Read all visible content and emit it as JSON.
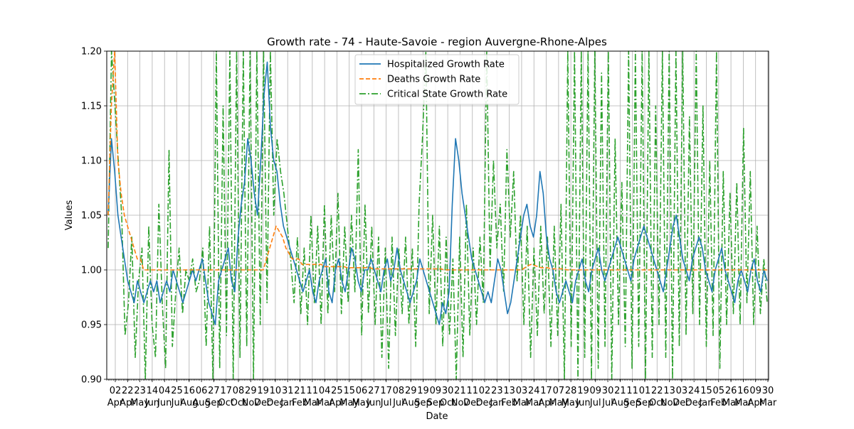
{
  "chart_data": {
    "type": "line",
    "title": "Growth rate - 74 - Haute-Savoie - region Auvergne-Rhone-Alpes",
    "xlabel": "Date",
    "ylabel": "Values",
    "ylim": [
      0.9,
      1.2
    ],
    "yticks": [
      "0.90",
      "0.95",
      "1.00",
      "1.05",
      "1.10",
      "1.15",
      "1.20"
    ],
    "grid": true,
    "legend": {
      "placement": "top-center"
    },
    "x_tick_labels": {
      "day": [
        "02",
        "22",
        "23",
        "14",
        "04",
        "25",
        "16",
        "06",
        "27",
        "17",
        "08",
        "29",
        "19",
        "10",
        "31",
        "21",
        "11",
        "04",
        "25",
        "15",
        "06",
        "27",
        "17",
        "08",
        "29",
        "19",
        "09",
        "30",
        "21",
        "11",
        "02",
        "23",
        "13",
        "03",
        "24",
        "17",
        "07",
        "28",
        "19",
        "09",
        "30",
        "21",
        "11",
        "01",
        "22",
        "13",
        "03",
        "24",
        "15",
        "05",
        "26",
        "16",
        "09",
        "30"
      ],
      "month": [
        "Apr",
        "Apr",
        "May",
        "Jun",
        "Jun",
        "Jul",
        "Aug",
        "Aug",
        "Sep",
        "Oct",
        "Oct",
        "Nov",
        "Dec",
        "Dec",
        "Jan",
        "Feb",
        "Mar",
        "Mar",
        "Apr",
        "May",
        "May",
        "Jun",
        "Jul",
        "Jul",
        "Aug",
        "Sep",
        "Sep",
        "Oct",
        "Nov",
        "Dec",
        "Dec",
        "Jan",
        "Feb",
        "Mar",
        "Mar",
        "Apr",
        "May",
        "May",
        "Jun",
        "Jul",
        "Jul",
        "Aug",
        "Sep",
        "Sep",
        "Oct",
        "Nov",
        "Dec",
        "Dec",
        "Jan",
        "Feb",
        "Mar",
        "Mar",
        "Apr",
        "Mar"
      ]
    },
    "series": [
      {
        "name": "Hospitalized Growth Rate",
        "color": "#1f77b4",
        "style": "solid",
        "values": [
          1.05,
          1.12,
          1.09,
          1.05,
          1.03,
          1.01,
          0.99,
          0.98,
          0.97,
          0.99,
          0.98,
          0.97,
          0.98,
          0.99,
          0.98,
          0.99,
          0.97,
          0.98,
          0.99,
          0.98,
          1.0,
          0.99,
          0.98,
          0.97,
          0.98,
          0.99,
          1.0,
          0.99,
          1.0,
          1.01,
          0.99,
          0.97,
          0.96,
          0.95,
          0.99,
          1.0,
          1.01,
          1.02,
          0.99,
          0.98,
          1.03,
          1.06,
          1.08,
          1.12,
          1.1,
          1.07,
          1.05,
          1.1,
          1.16,
          1.19,
          1.13,
          1.1,
          1.09,
          1.06,
          1.04,
          1.03,
          1.02,
          1.01,
          1.0,
          0.99,
          0.98,
          0.99,
          1.0,
          0.98,
          0.97,
          0.99,
          1.0,
          1.01,
          0.98,
          0.97,
          1.0,
          1.01,
          0.99,
          0.98,
          1.0,
          1.02,
          1.01,
          0.99,
          0.98,
          1.0,
          1.0,
          1.01,
          1.0,
          0.99,
          0.98,
          1.0,
          1.01,
          0.99,
          1.0,
          1.02,
          1.0,
          0.99,
          0.98,
          0.97,
          0.98,
          0.99,
          1.01,
          1.0,
          0.99,
          0.98,
          0.97,
          0.96,
          0.95,
          0.97,
          0.96,
          0.98,
          1.06,
          1.12,
          1.1,
          1.07,
          1.05,
          1.03,
          1.01,
          1.0,
          0.99,
          0.98,
          0.97,
          0.98,
          0.97,
          0.99,
          1.01,
          1.0,
          0.98,
          0.96,
          0.97,
          0.99,
          1.01,
          1.03,
          1.05,
          1.06,
          1.04,
          1.03,
          1.05,
          1.09,
          1.07,
          1.03,
          1.01,
          1.0,
          0.98,
          0.97,
          0.98,
          0.99,
          0.98,
          0.97,
          0.99,
          1.0,
          1.01,
          0.99,
          0.98,
          1.0,
          1.01,
          1.02,
          1.0,
          0.99,
          1.0,
          1.01,
          1.02,
          1.03,
          1.02,
          1.01,
          1.0,
          0.99,
          1.01,
          1.02,
          1.03,
          1.04,
          1.03,
          1.02,
          1.01,
          1.0,
          0.99,
          0.98,
          1.0,
          1.02,
          1.04,
          1.05,
          1.03,
          1.01,
          1.0,
          0.99,
          1.01,
          1.02,
          1.03,
          1.02,
          1.0,
          0.99,
          0.98,
          1.0,
          1.01,
          1.02,
          1.0,
          0.99,
          0.98,
          0.97,
          0.99,
          1.0,
          0.99,
          0.98,
          1.0,
          1.01,
          0.99,
          0.98,
          1.0,
          0.99
        ]
      },
      {
        "name": "Deaths Growth Rate",
        "color": "#ff7f0e",
        "style": "dashed",
        "values": [
          1.05,
          1.15,
          1.2,
          1.1,
          1.07,
          1.05,
          1.04,
          1.03,
          1.02,
          1.01,
          1.01,
          1.0,
          1.0,
          1.0,
          1.0,
          1.0,
          1.0,
          1.0,
          1.0,
          1.0,
          1.0,
          1.0,
          1.0,
          1.0,
          1.0,
          1.0,
          1.0,
          1.0,
          1.0,
          1.0,
          1.0,
          1.0,
          1.0,
          1.0,
          1.0,
          1.0,
          1.0,
          1.0,
          1.0,
          1.0,
          1.0,
          1.0,
          1.0,
          1.0,
          1.0,
          1.0,
          1.0,
          1.0,
          1.0,
          1.01,
          1.02,
          1.03,
          1.04,
          1.035,
          1.03,
          1.02,
          1.015,
          1.01,
          1.01,
          1.01,
          1.005,
          1.005,
          1.005,
          1.005,
          1.005,
          1.005,
          1.005,
          1.003,
          1.003,
          1.003,
          1.003,
          1.003,
          1.003,
          1.003,
          1.002,
          1.002,
          1.002,
          1.002,
          1.002,
          1.002,
          1.002,
          1.002,
          1.001,
          1.001,
          1.001,
          1.001,
          1.001,
          1.001,
          1.001,
          1.001,
          1.001,
          1.001,
          1.001,
          1.001,
          1.001,
          1.001,
          1.001,
          1.001,
          1.001,
          1.001,
          1.001,
          1.001,
          1.001,
          1.001,
          1.0,
          1.0,
          1.0,
          1.0,
          1.0,
          1.0,
          1.0,
          1.0,
          1.0,
          1.0,
          1.0,
          1.0,
          1.0,
          1.0,
          1.0,
          1.0,
          1.0,
          1.0,
          1.0,
          1.0,
          1.0,
          1.0,
          1.0,
          1.0,
          1.0,
          1.002,
          1.004,
          1.005,
          1.004,
          1.003,
          1.002,
          1.002,
          1.002,
          1.001,
          1.001,
          1.001,
          1.001,
          1.001,
          1.0,
          1.0,
          1.0,
          1.0,
          1.0,
          1.0,
          1.0,
          1.0,
          1.0,
          1.0,
          1.0,
          1.0,
          1.0,
          1.0,
          1.0,
          1.0,
          1.0,
          1.0,
          1.0,
          1.0,
          1.0,
          1.0,
          1.0,
          1.0,
          1.0,
          1.0,
          1.0,
          1.0,
          1.0,
          1.0,
          1.0,
          1.0,
          1.0,
          1.0,
          1.0,
          1.0,
          1.0,
          1.0,
          1.0,
          1.0,
          1.0,
          1.0,
          1.0,
          1.0,
          1.0,
          1.0,
          1.0,
          1.0,
          1.0,
          1.0,
          1.0,
          1.0,
          1.0,
          1.0,
          1.0,
          1.0,
          1.0,
          1.0,
          1.0,
          1.0,
          1.0,
          1.0,
          1.0
        ]
      },
      {
        "name": "Critical State Growth Rate",
        "color": "#2ca02c",
        "style": "dashdot",
        "values": [
          1.02,
          1.2,
          1.15,
          1.1,
          1.05,
          0.94,
          0.97,
          1.03,
          0.92,
          0.99,
          1.02,
          0.9,
          1.04,
          0.95,
          0.92,
          1.06,
          0.97,
          0.91,
          1.11,
          0.93,
          0.98,
          1.02,
          0.96,
          1.0,
          0.99,
          1.01,
          0.98,
          0.99,
          1.02,
          0.93,
          1.04,
          0.9,
          1.2,
          0.91,
          1.15,
          0.94,
          1.2,
          0.9,
          1.2,
          0.92,
          1.2,
          0.93,
          1.2,
          0.9,
          1.2,
          0.95,
          1.2,
          0.97,
          1.2,
          1.05,
          1.12,
          1.09,
          1.07,
          1.04,
          1.01,
          0.97,
          1.03,
          0.96,
          1.02,
          0.95,
          1.05,
          0.97,
          1.04,
          0.95,
          1.06,
          0.96,
          1.05,
          0.98,
          1.07,
          0.96,
          1.04,
          0.97,
          1.05,
          0.98,
          1.11,
          0.94,
          1.06,
          0.96,
          1.04,
          0.95,
          1.03,
          0.92,
          1.02,
          0.91,
          1.03,
          0.94,
          1.02,
          0.96,
          1.03,
          0.95,
          1.02,
          0.93,
          1.06,
          1.12,
          1.2,
          0.96,
          1.05,
          0.95,
          1.04,
          0.93,
          1.03,
          0.94,
          1.01,
          0.9,
          1.03,
          0.92,
          1.06,
          0.94,
          1.02,
          0.95,
          1.03,
          0.97,
          1.2,
          1.0,
          1.1,
          1.02,
          1.06,
          0.98,
          1.11,
          1.03,
          1.09,
          0.99,
          1.05,
          0.95,
          1.04,
          0.92,
          1.02,
          0.94,
          1.04,
          0.96,
          1.03,
          0.93,
          1.04,
          0.94,
          1.06,
          0.9,
          1.2,
          0.93,
          1.2,
          0.9,
          1.2,
          0.92,
          1.2,
          0.9,
          1.2,
          0.91,
          1.18,
          0.93,
          1.2,
          0.9,
          1.12,
          0.95,
          1.08,
          0.93,
          1.2,
          0.91,
          1.2,
          0.93,
          1.2,
          0.9,
          1.2,
          0.92,
          1.15,
          0.95,
          1.2,
          0.92,
          1.2,
          0.9,
          1.2,
          0.93,
          1.2,
          0.94,
          1.14,
          0.96,
          1.2,
          0.95,
          1.15,
          0.93,
          1.1,
          0.94,
          1.2,
          0.91,
          1.09,
          0.95,
          1.07,
          0.96,
          1.08,
          0.95,
          1.13,
          0.97,
          1.09,
          0.95,
          1.04,
          0.96,
          1.01,
          0.97
        ]
      }
    ]
  }
}
